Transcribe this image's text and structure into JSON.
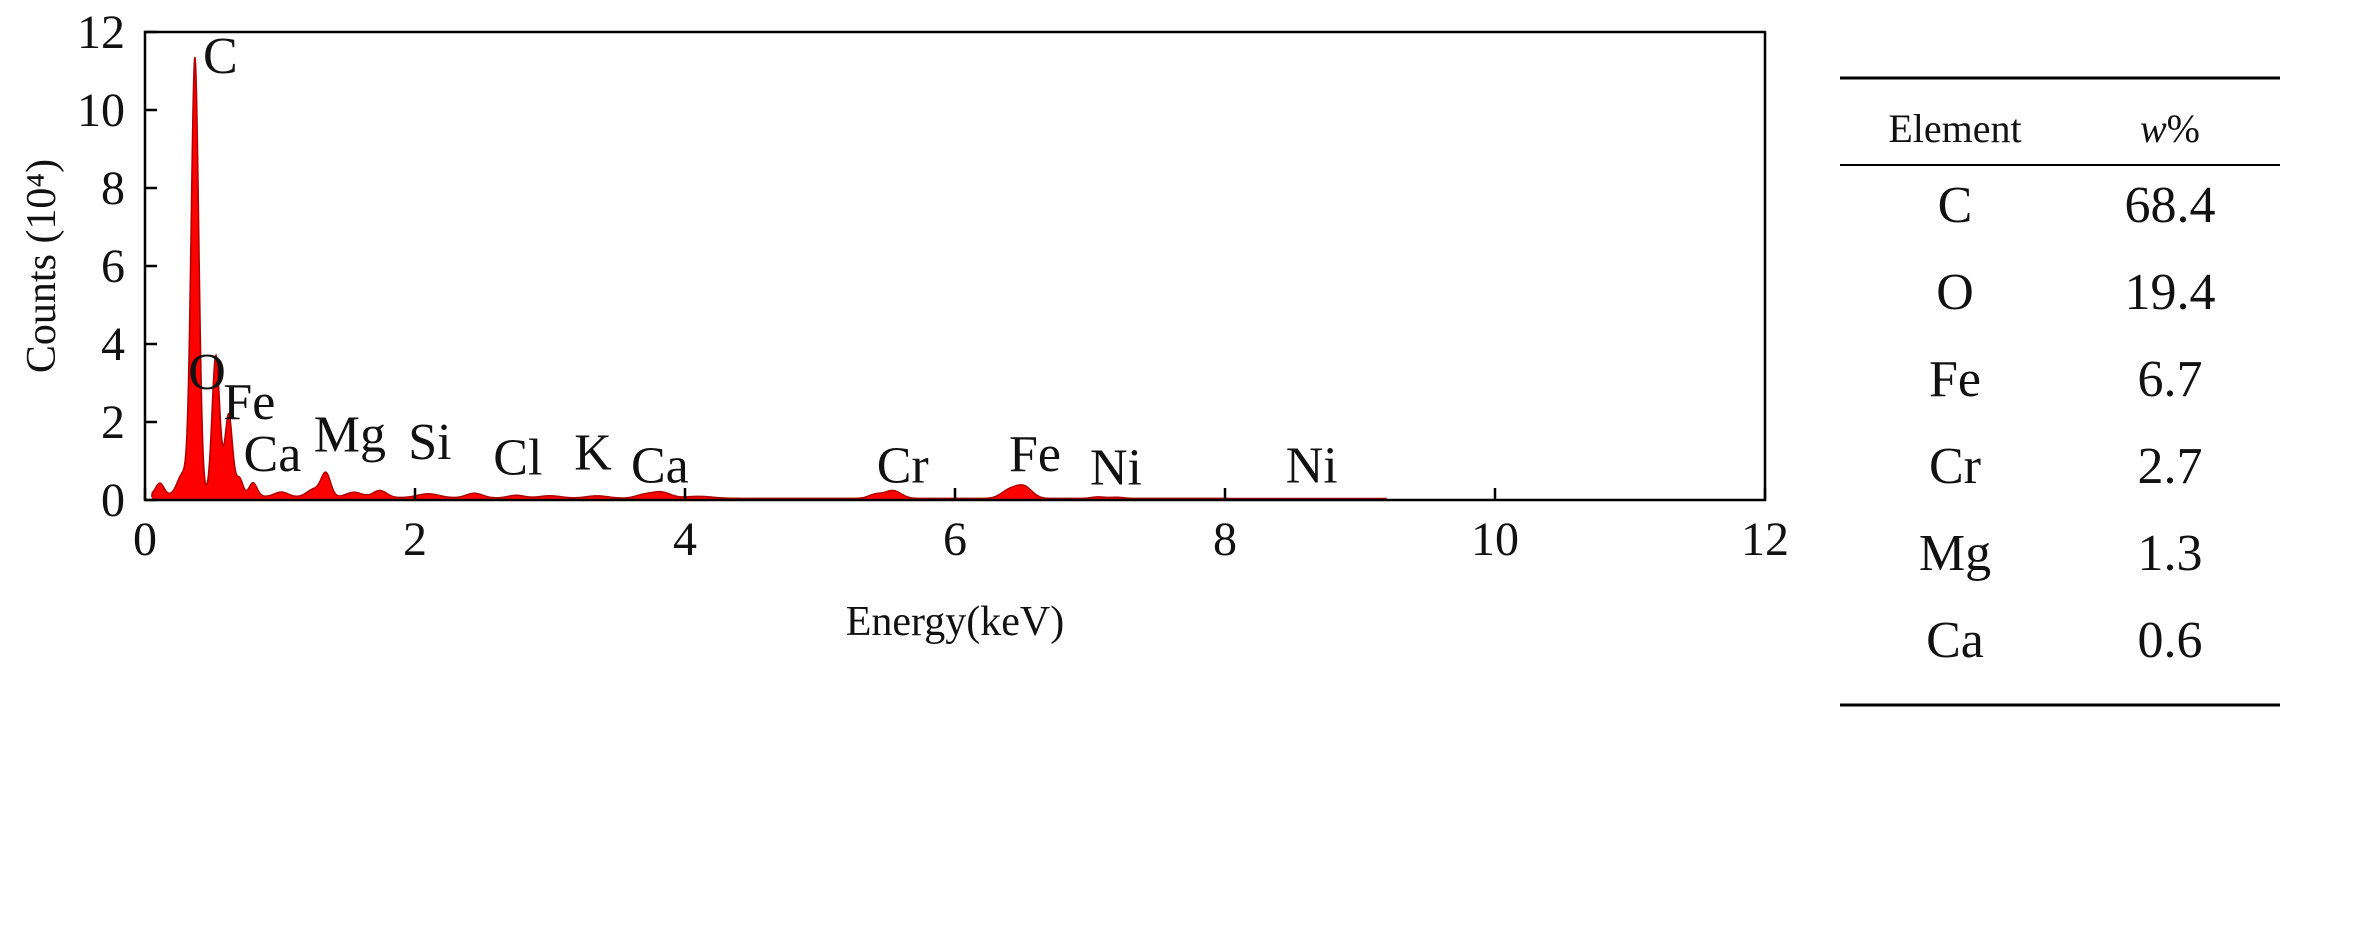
{
  "chart_data": {
    "type": "area",
    "title": "",
    "xlabel": "Energy(keV)",
    "ylabel": "Counts (10⁴)",
    "xlim": [
      0,
      12
    ],
    "ylim": [
      0,
      12
    ],
    "x_ticks": [
      0,
      2,
      4,
      6,
      8,
      10,
      12
    ],
    "y_ticks": [
      0,
      2,
      4,
      6,
      8,
      10,
      12
    ],
    "x_tick_labels": [
      "0",
      "2",
      "4",
      "6",
      "8",
      "10",
      "12"
    ],
    "y_tick_labels": [
      "0",
      "2",
      "4",
      "6",
      "8",
      "10",
      "12"
    ],
    "grid": false,
    "fill_color": "#ff0000",
    "series": [
      {
        "peaks": [
          {
            "center": 0.11,
            "height": 0.3,
            "width": 0.03
          },
          {
            "center": 0.28,
            "height": 0.55,
            "width": 0.04
          },
          {
            "center": 0.37,
            "height": 11.2,
            "width": 0.028
          },
          {
            "center": 0.525,
            "height": 3.6,
            "width": 0.028
          },
          {
            "center": 0.62,
            "height": 2.1,
            "width": 0.028
          },
          {
            "center": 0.7,
            "height": 0.45,
            "width": 0.025
          },
          {
            "center": 0.8,
            "height": 0.35,
            "width": 0.03
          },
          {
            "center": 1.01,
            "height": 0.12,
            "width": 0.05
          },
          {
            "center": 1.25,
            "height": 0.2,
            "width": 0.05
          },
          {
            "center": 1.34,
            "height": 0.6,
            "width": 0.035
          },
          {
            "center": 1.55,
            "height": 0.13,
            "width": 0.06
          },
          {
            "center": 1.74,
            "height": 0.18,
            "width": 0.05
          },
          {
            "center": 2.1,
            "height": 0.1,
            "width": 0.08
          },
          {
            "center": 2.44,
            "height": 0.12,
            "width": 0.06
          },
          {
            "center": 2.75,
            "height": 0.07,
            "width": 0.06
          },
          {
            "center": 3.0,
            "height": 0.06,
            "width": 0.08
          },
          {
            "center": 3.35,
            "height": 0.06,
            "width": 0.08
          },
          {
            "center": 3.69,
            "height": 0.08,
            "width": 0.06
          },
          {
            "center": 3.82,
            "height": 0.16,
            "width": 0.07
          },
          {
            "center": 4.1,
            "height": 0.05,
            "width": 0.1
          },
          {
            "center": 5.41,
            "height": 0.1,
            "width": 0.05
          },
          {
            "center": 5.54,
            "height": 0.2,
            "width": 0.06
          },
          {
            "center": 6.4,
            "height": 0.2,
            "width": 0.06
          },
          {
            "center": 6.51,
            "height": 0.3,
            "width": 0.06
          },
          {
            "center": 7.06,
            "height": 0.04,
            "width": 0.05
          },
          {
            "center": 7.2,
            "height": 0.03,
            "width": 0.05
          }
        ],
        "background": {
          "start": 0.08,
          "decay": 0.18,
          "floor": 0.04
        }
      }
    ],
    "annotations": [
      {
        "text": "C",
        "x": 0.43,
        "y": 10.95
      },
      {
        "text": "O",
        "x": 0.32,
        "y": 2.85
      },
      {
        "text": "Fe",
        "x": 0.58,
        "y": 2.08
      },
      {
        "text": "Ca",
        "x": 0.73,
        "y": 0.75
      },
      {
        "text": "Mg",
        "x": 1.25,
        "y": 1.25
      },
      {
        "text": "Si",
        "x": 1.95,
        "y": 1.05
      },
      {
        "text": "Cl",
        "x": 2.58,
        "y": 0.65
      },
      {
        "text": "K",
        "x": 3.18,
        "y": 0.78
      },
      {
        "text": "Ca",
        "x": 3.6,
        "y": 0.45
      },
      {
        "text": "Cr",
        "x": 5.42,
        "y": 0.45
      },
      {
        "text": "Fe",
        "x": 6.4,
        "y": 0.75
      },
      {
        "text": "Ni",
        "x": 7.0,
        "y": 0.4
      },
      {
        "text": "Ni",
        "x": 8.45,
        "y": 0.45
      }
    ],
    "table": {
      "headers": [
        "Element",
        "w%"
      ],
      "rows": [
        [
          "C",
          "68.4"
        ],
        [
          "O",
          "19.4"
        ],
        [
          "Fe",
          "6.7"
        ],
        [
          "Cr",
          "2.7"
        ],
        [
          "Mg",
          "1.3"
        ],
        [
          "Ca",
          "0.6"
        ]
      ]
    }
  }
}
